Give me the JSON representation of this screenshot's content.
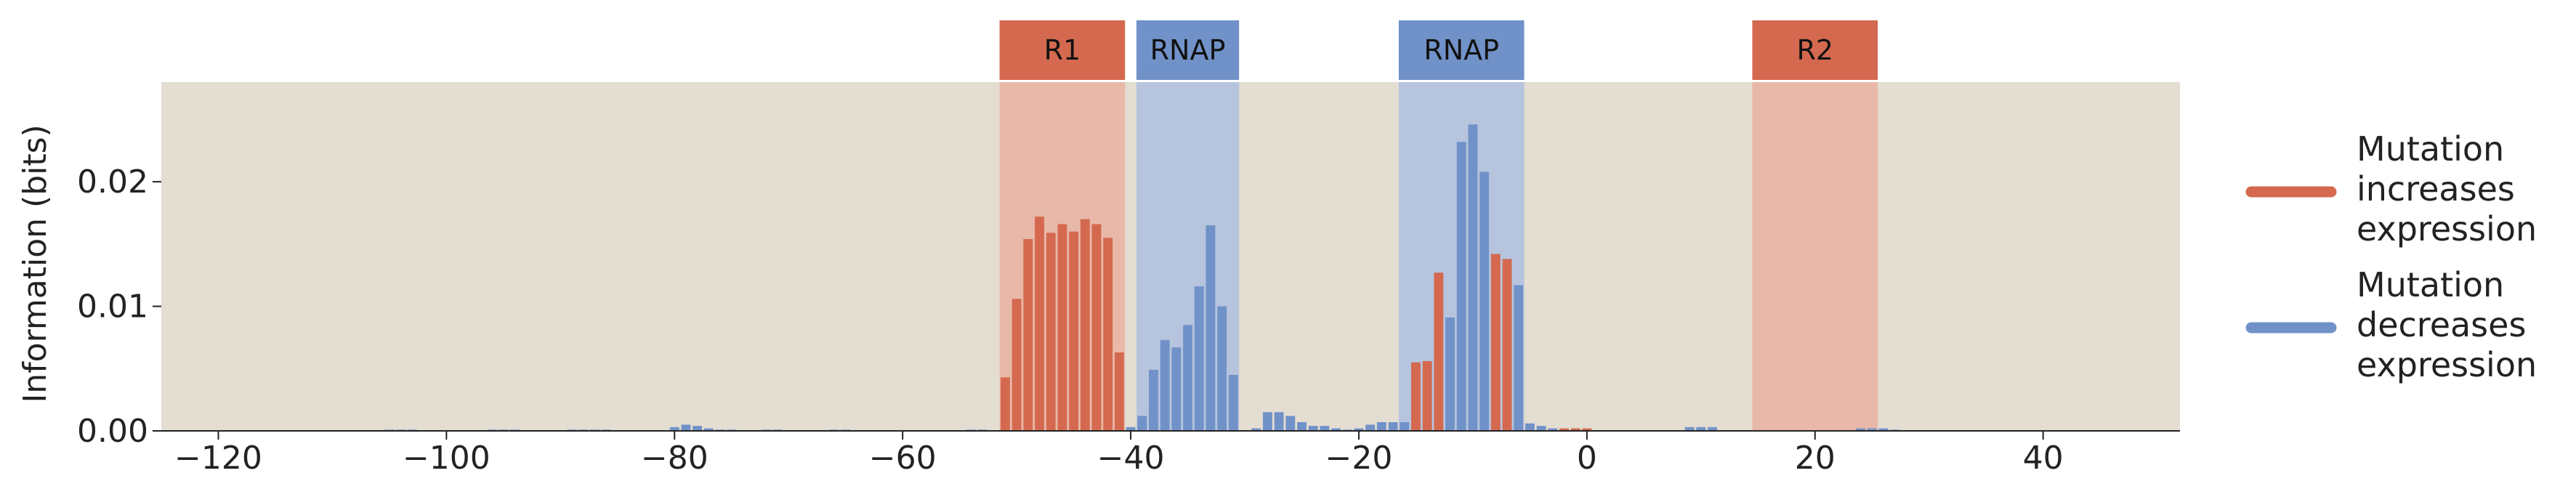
{
  "chart_data": {
    "type": "bar",
    "title": "",
    "xlabel": "",
    "ylabel": "Information (bits)",
    "xlim": [
      -125,
      52
    ],
    "ylim": [
      0,
      0.028
    ],
    "x_ticks": [
      -120,
      -100,
      -80,
      -60,
      -40,
      -20,
      0,
      20,
      40
    ],
    "x_tick_labels": [
      "−120",
      "−100",
      "−80",
      "−60",
      "−40",
      "−20",
      "0",
      "20",
      "40"
    ],
    "y_ticks": [
      0,
      0.01,
      0.02
    ],
    "y_tick_labels": [
      "0.00",
      "0.01",
      "0.02"
    ],
    "grid": false,
    "legend_position": "right",
    "colors": {
      "background": "#e3ddd2",
      "increase": "#d4694f",
      "decrease": "#7192c8",
      "increase_region": "#e8b8a8",
      "decrease_region": "#b6c4de"
    },
    "regions": [
      {
        "label": "R1",
        "start": -51,
        "end": -41,
        "kind": "increase"
      },
      {
        "label": "RNAP",
        "start": -39,
        "end": -31,
        "kind": "decrease"
      },
      {
        "label": "RNAP",
        "start": -16,
        "end": -6,
        "kind": "decrease"
      },
      {
        "label": "R2",
        "start": 15,
        "end": 25,
        "kind": "increase"
      }
    ],
    "series": [
      {
        "name": "Mutation increases expression",
        "color": "#d4694f",
        "x": [
          -51,
          -50,
          -49,
          -48,
          -47,
          -46,
          -45,
          -44,
          -43,
          -42,
          -41,
          -15,
          -14,
          -13,
          -8,
          -7,
          -2,
          -1,
          0
        ],
        "values": [
          0.0043,
          0.0106,
          0.0154,
          0.0172,
          0.0159,
          0.0166,
          0.016,
          0.017,
          0.0166,
          0.0155,
          0.0063,
          0.0055,
          0.0056,
          0.0127,
          0.0142,
          0.0138,
          0.0002,
          0.0002,
          0.0002
        ]
      },
      {
        "name": "Mutation decreases expression",
        "color": "#7192c8",
        "x": [
          -105,
          -104,
          -103,
          -96,
          -95,
          -94,
          -89,
          -88,
          -87,
          -86,
          -80,
          -79,
          -78,
          -77,
          -76,
          -75,
          -72,
          -71,
          -66,
          -65,
          -54,
          -53,
          -40,
          -39,
          -38,
          -37,
          -36,
          -35,
          -34,
          -33,
          -32,
          -31,
          -29,
          -28,
          -27,
          -26,
          -25,
          -24,
          -23,
          -22,
          -21,
          -20,
          -19,
          -18,
          -17,
          -16,
          -12,
          -11,
          -10,
          -9,
          -6,
          -5,
          -4,
          -3,
          9,
          10,
          11,
          24,
          25,
          26,
          27
        ],
        "values": [
          0.0001,
          0.0001,
          0.0001,
          0.0001,
          0.0001,
          0.0001,
          0.0001,
          0.0001,
          0.0001,
          0.0001,
          0.0003,
          0.0005,
          0.0004,
          0.0002,
          0.0001,
          0.0001,
          0.0001,
          0.0001,
          0.0001,
          0.0001,
          0.0001,
          0.0001,
          0.0003,
          0.0012,
          0.0049,
          0.0073,
          0.0067,
          0.0085,
          0.0116,
          0.0165,
          0.01,
          0.0045,
          0.0002,
          0.0015,
          0.0015,
          0.0012,
          0.0007,
          0.0004,
          0.0004,
          0.0002,
          0.0001,
          0.0002,
          0.0005,
          0.0007,
          0.0007,
          0.0007,
          0.0091,
          0.0232,
          0.0246,
          0.0208,
          0.0117,
          0.0006,
          0.0004,
          0.0002,
          0.0003,
          0.0003,
          0.0003,
          0.0002,
          0.0002,
          0.0002,
          0.0001
        ]
      }
    ],
    "legend": [
      {
        "label_lines": [
          "Mutation",
          "increases",
          "expression"
        ],
        "color": "#d4694f"
      },
      {
        "label_lines": [
          "Mutation",
          "decreases",
          "expression"
        ],
        "color": "#7192c8"
      }
    ]
  }
}
